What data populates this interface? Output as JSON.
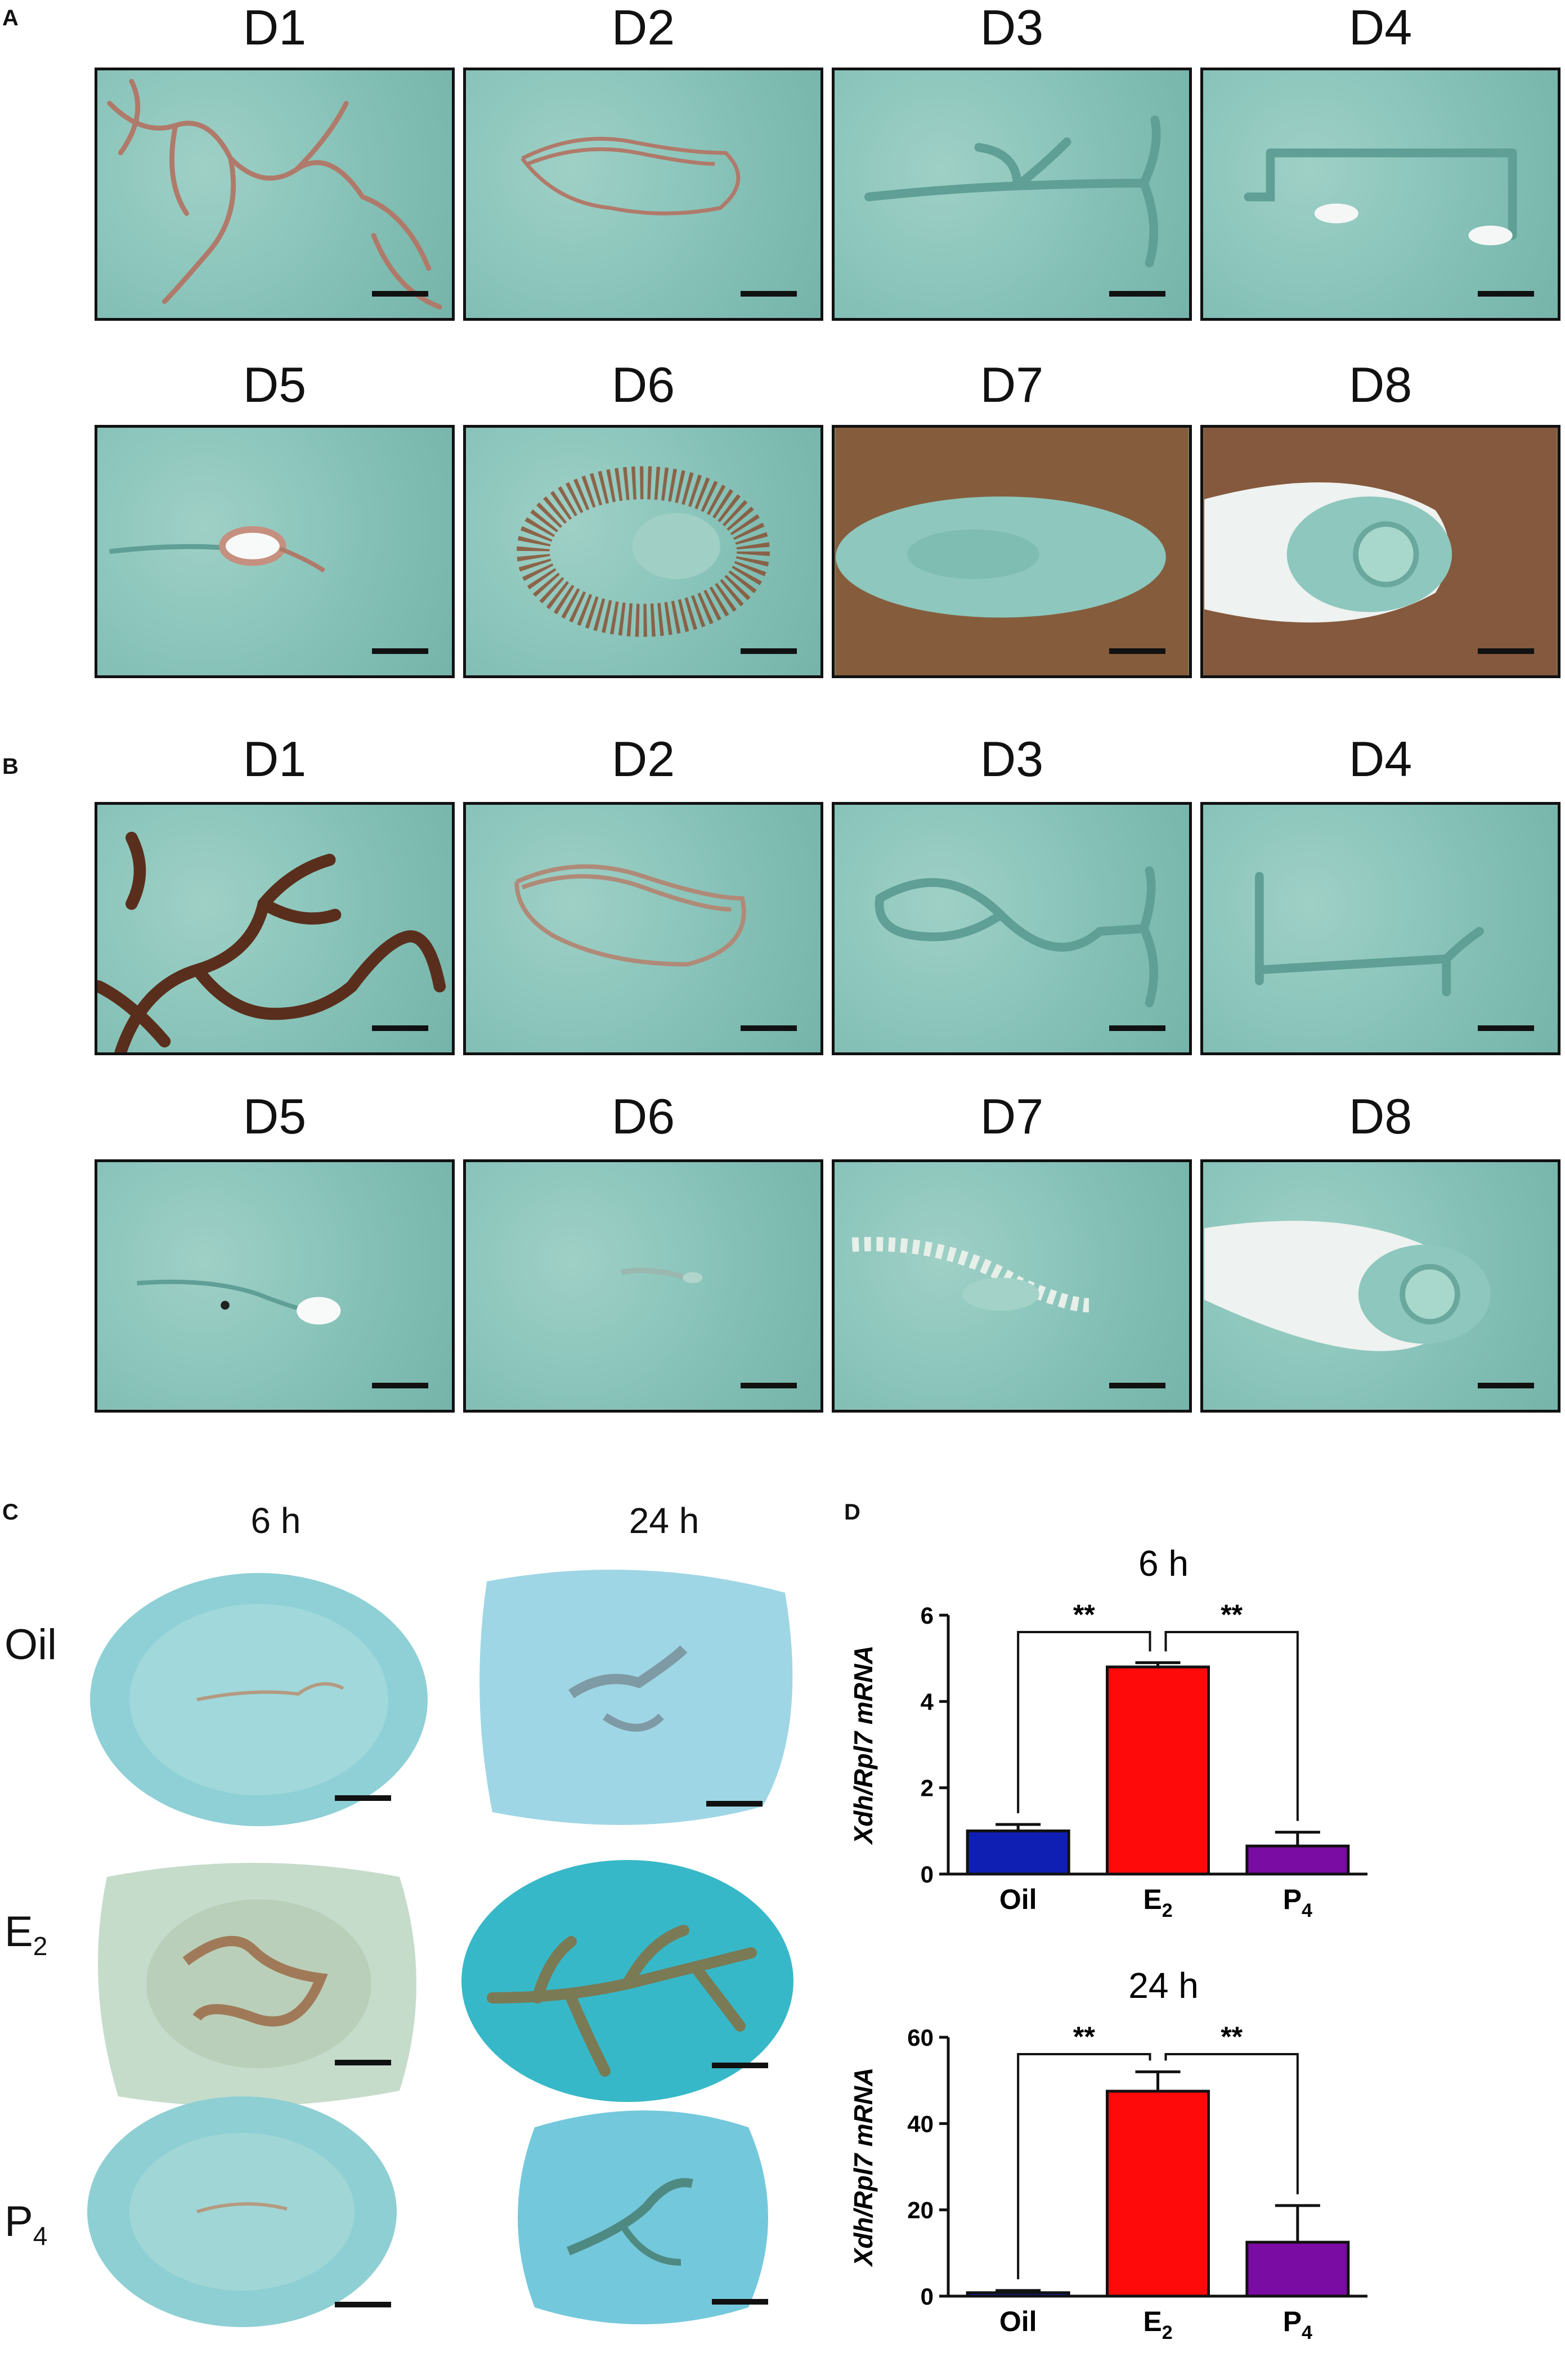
{
  "panels": {
    "a": {
      "letter": "A",
      "days": [
        "D1",
        "D2",
        "D3",
        "D4",
        "D5",
        "D6",
        "D7",
        "D8"
      ]
    },
    "b": {
      "letter": "B",
      "days": [
        "D1",
        "D2",
        "D3",
        "D4",
        "D5",
        "D6",
        "D7",
        "D8"
      ]
    },
    "c": {
      "letter": "C",
      "times": [
        "6 h",
        "24 h"
      ],
      "rows": [
        {
          "label": "Oil",
          "sub": ""
        },
        {
          "label": "E",
          "sub": "2"
        },
        {
          "label": "P",
          "sub": "4"
        }
      ]
    },
    "d": {
      "letter": "D"
    }
  },
  "colors": {
    "oil": "#0f1fb4",
    "e2": "#ff0a0a",
    "p4": "#7a0ba3",
    "tissue_green": "#8ec7bd",
    "stain_brown": "#8a4a2a"
  },
  "chart_data": [
    {
      "type": "bar",
      "title": "6 h",
      "ylabel": "Xdh/Rpl7 mRNA",
      "categories": [
        {
          "base": "Oil",
          "sub": ""
        },
        {
          "base": "E",
          "sub": "2"
        },
        {
          "base": "P",
          "sub": "4"
        }
      ],
      "values": [
        1.0,
        4.8,
        0.65
      ],
      "errors": [
        0.15,
        0.1,
        0.32
      ],
      "ylim": [
        0,
        6
      ],
      "yticks": [
        0,
        2,
        4,
        6
      ],
      "significance": [
        {
          "from": 0,
          "to": 1,
          "label": "**"
        },
        {
          "from": 1,
          "to": 2,
          "label": "**"
        }
      ]
    },
    {
      "type": "bar",
      "title": "24 h",
      "ylabel": "Xdh/Rpl7 mRNA",
      "categories": [
        {
          "base": "Oil",
          "sub": ""
        },
        {
          "base": "E",
          "sub": "2"
        },
        {
          "base": "P",
          "sub": "4"
        }
      ],
      "values": [
        0.8,
        47.5,
        12.5
      ],
      "errors": [
        0.5,
        4.5,
        8.5
      ],
      "ylim": [
        0,
        60
      ],
      "yticks": [
        0,
        20,
        40,
        60
      ],
      "significance": [
        {
          "from": 0,
          "to": 1,
          "label": "**"
        },
        {
          "from": 1,
          "to": 2,
          "label": "**"
        }
      ]
    }
  ]
}
